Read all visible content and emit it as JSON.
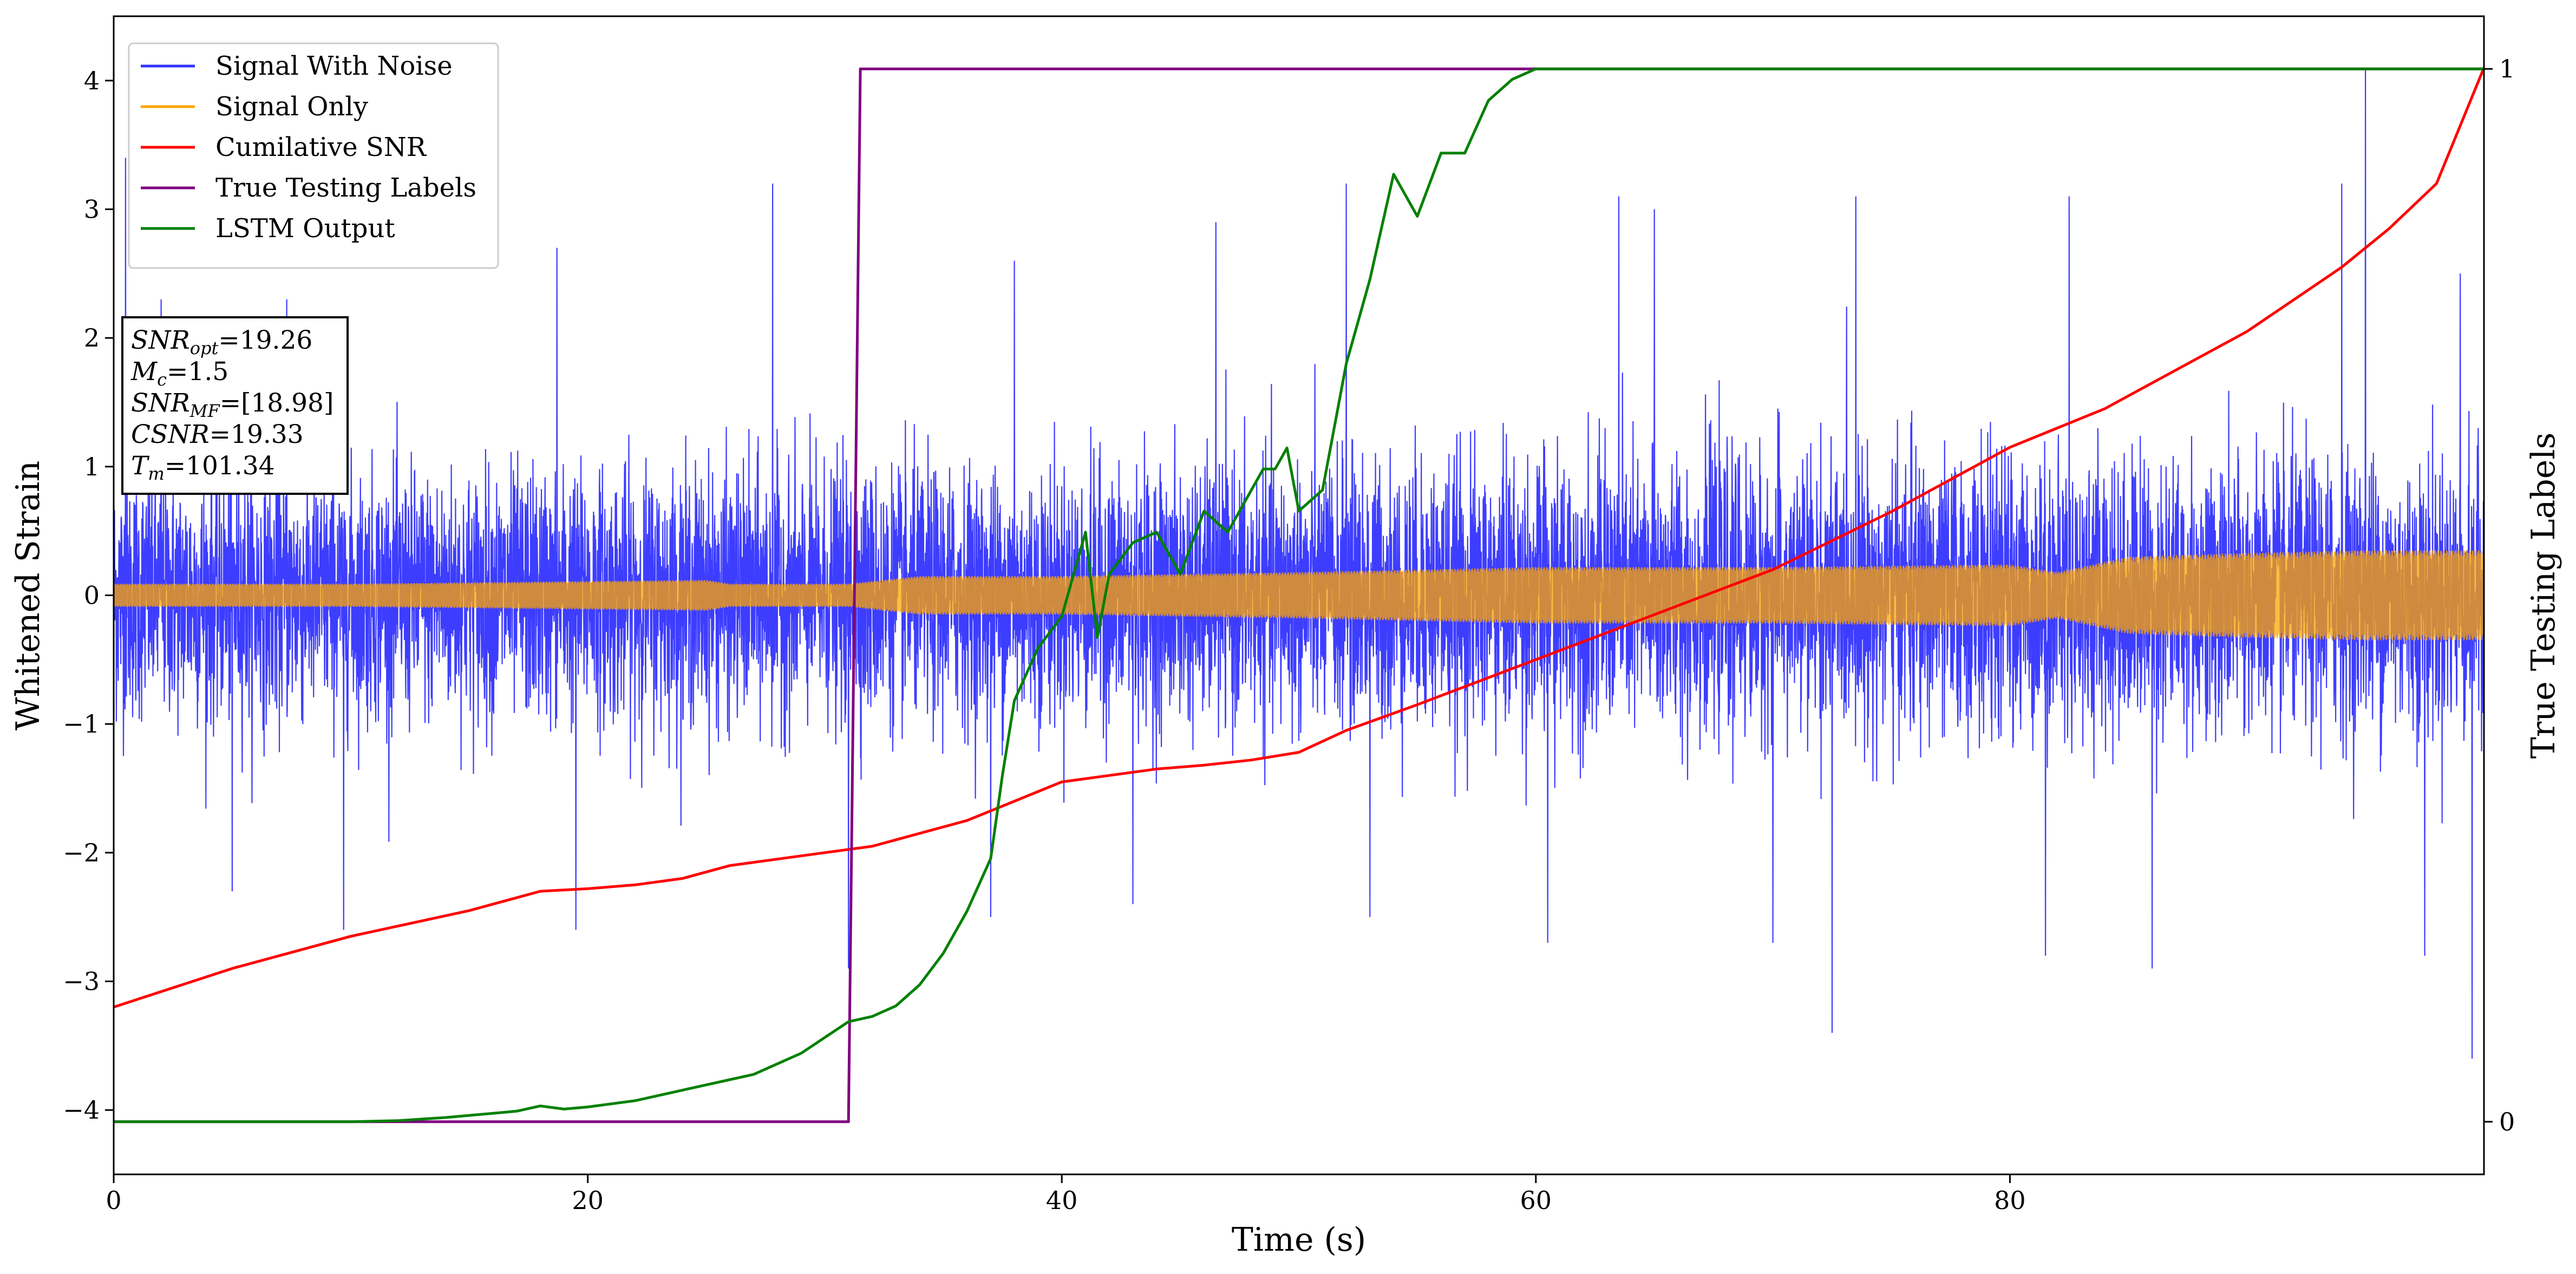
{
  "chart_data": {
    "type": "line",
    "xlabel": "Time (s)",
    "ylabel": "Whitened Strain",
    "y2label": "True Testing Labels",
    "xlim": [
      0,
      100
    ],
    "ylim": [
      -4.5,
      4.5
    ],
    "y2lim": [
      -0.05,
      1.05
    ],
    "xticks": [
      0,
      20,
      40,
      60,
      80
    ],
    "yticks": [
      -4,
      -3,
      -2,
      -1,
      0,
      1,
      2,
      3,
      4
    ],
    "y2ticks": [
      0,
      1
    ],
    "legend_position": "upper-left",
    "series": [
      {
        "name": "Signal With Noise",
        "axis": "left",
        "color": "#3333ff",
        "style": "dense-noise",
        "envelope": {
          "x": [
            0,
            20,
            40,
            60,
            80,
            100
          ],
          "typical_max": [
            1.0,
            1.0,
            1.0,
            1.1,
            1.1,
            1.1
          ],
          "typical_min": [
            -1.0,
            -1.0,
            -1.0,
            -1.1,
            -1.1,
            -1.1
          ]
        },
        "peaks": {
          "x": [
            0.5,
            2.0,
            7.3,
            18.7,
            27.8,
            38.0,
            46.5,
            52.0,
            63.5,
            65.0,
            73.5,
            82.5,
            94.0,
            95.0,
            99.0
          ],
          "y": [
            3.4,
            2.3,
            2.3,
            2.7,
            3.2,
            2.6,
            2.9,
            3.2,
            3.1,
            3.0,
            3.1,
            3.1,
            3.2,
            4.1,
            2.5
          ]
        },
        "troughs": {
          "x": [
            5.0,
            9.7,
            19.5,
            31.0,
            37.0,
            43.0,
            53.0,
            60.5,
            70.0,
            72.5,
            81.5,
            86.0,
            97.5,
            99.5
          ],
          "y": [
            -2.3,
            -2.6,
            -2.6,
            -2.9,
            -2.5,
            -2.4,
            -2.5,
            -2.7,
            -2.7,
            -3.4,
            -2.8,
            -2.9,
            -2.8,
            -3.6
          ]
        }
      },
      {
        "name": "Signal Only",
        "axis": "left",
        "color": "#ffa500",
        "style": "oscillation",
        "amplitude": {
          "x": [
            0,
            10,
            25,
            26,
            30,
            31,
            34,
            40,
            50,
            60,
            70,
            80,
            82,
            85,
            90,
            95,
            100
          ],
          "y": [
            0.09,
            0.09,
            0.12,
            0.09,
            0.09,
            0.09,
            0.15,
            0.15,
            0.18,
            0.22,
            0.22,
            0.24,
            0.18,
            0.3,
            0.33,
            0.35,
            0.35
          ]
        }
      },
      {
        "name": "Cumilative SNR",
        "axis": "left",
        "color": "#ff0000",
        "x": [
          0,
          5,
          10,
          15,
          18,
          20,
          22,
          24,
          26,
          28,
          30,
          32,
          34,
          36,
          38,
          40,
          42,
          44,
          46,
          48,
          50,
          52,
          55,
          60,
          65,
          70,
          75,
          80,
          82,
          84,
          86,
          88,
          90,
          92,
          94,
          96,
          98,
          100
        ],
        "y": [
          -3.2,
          -2.9,
          -2.65,
          -2.45,
          -2.3,
          -2.28,
          -2.25,
          -2.2,
          -2.1,
          -2.05,
          -2.0,
          -1.95,
          -1.85,
          -1.75,
          -1.6,
          -1.45,
          -1.4,
          -1.35,
          -1.32,
          -1.28,
          -1.22,
          -1.05,
          -0.85,
          -0.5,
          -0.15,
          0.2,
          0.65,
          1.15,
          1.3,
          1.45,
          1.65,
          1.85,
          2.05,
          2.3,
          2.55,
          2.85,
          3.2,
          4.1
        ]
      },
      {
        "name": "True Testing Labels",
        "axis": "right",
        "color": "#800080",
        "x": [
          0,
          31.0,
          31.5,
          100
        ],
        "y": [
          0,
          0,
          1,
          1
        ]
      },
      {
        "name": "LSTM Output",
        "axis": "right",
        "color": "#008000",
        "x": [
          0,
          10,
          12,
          14,
          16,
          17,
          18,
          19,
          20,
          22,
          23,
          24,
          25,
          26,
          27,
          28,
          29,
          30,
          31,
          32,
          33,
          34,
          35,
          36,
          37,
          37.5,
          38,
          39,
          40,
          40.5,
          41,
          41.5,
          42,
          43,
          44,
          45,
          46,
          47,
          48,
          48.5,
          49,
          49.5,
          50,
          51,
          52,
          53,
          54,
          55,
          56,
          57,
          58,
          59,
          60,
          61,
          62,
          100
        ],
        "y": [
          0,
          0,
          0.001,
          0.004,
          0.008,
          0.01,
          0.015,
          0.012,
          0.014,
          0.02,
          0.025,
          0.03,
          0.035,
          0.04,
          0.045,
          0.055,
          0.065,
          0.08,
          0.095,
          0.1,
          0.11,
          0.13,
          0.16,
          0.2,
          0.25,
          0.33,
          0.4,
          0.45,
          0.48,
          0.52,
          0.56,
          0.46,
          0.52,
          0.55,
          0.56,
          0.52,
          0.58,
          0.56,
          0.6,
          0.62,
          0.62,
          0.64,
          0.58,
          0.6,
          0.72,
          0.8,
          0.9,
          0.86,
          0.92,
          0.92,
          0.97,
          0.99,
          1.0,
          1.0,
          1.0,
          1.0
        ]
      }
    ],
    "info_box": {
      "lines": [
        {
          "main": "SNR",
          "sub": "opt",
          "value": "=19.26"
        },
        {
          "main": "M",
          "sub": "c",
          "value": "=1.5"
        },
        {
          "main": "SNR",
          "sub": "MF",
          "value": "=[18.98]"
        },
        {
          "main": "CSNR",
          "sub": "",
          "value": "=19.33"
        },
        {
          "main": "T",
          "sub": "m",
          "value": "=101.34"
        }
      ]
    }
  }
}
